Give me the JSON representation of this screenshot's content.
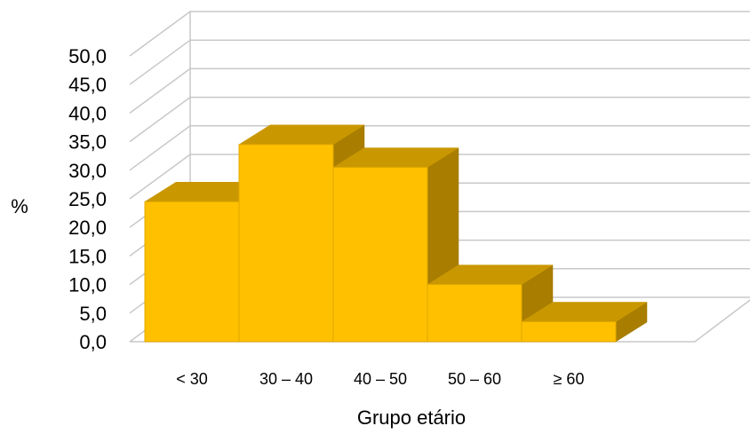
{
  "chart_data": {
    "type": "bar",
    "style": "3d-column",
    "categories": [
      "< 30",
      "30 – 40",
      "40 – 50",
      "50 – 60",
      "≥ 60"
    ],
    "values": [
      24.5,
      34.5,
      30.5,
      10.0,
      3.5
    ],
    "xlabel": "Grupo etário",
    "ylabel": "%",
    "ylim": [
      0,
      50
    ],
    "yticks": [
      "0,0",
      "5,0",
      "10,0",
      "15,0",
      "20,0",
      "25,0",
      "30,0",
      "35,0",
      "40,0",
      "45,0",
      "50,0"
    ],
    "grid": true,
    "legend": "none",
    "colors": {
      "bar_front": "#FFC000",
      "bar_top": "#C99700",
      "bar_side": "#A87D00",
      "grid": "#C8C8C8"
    }
  }
}
